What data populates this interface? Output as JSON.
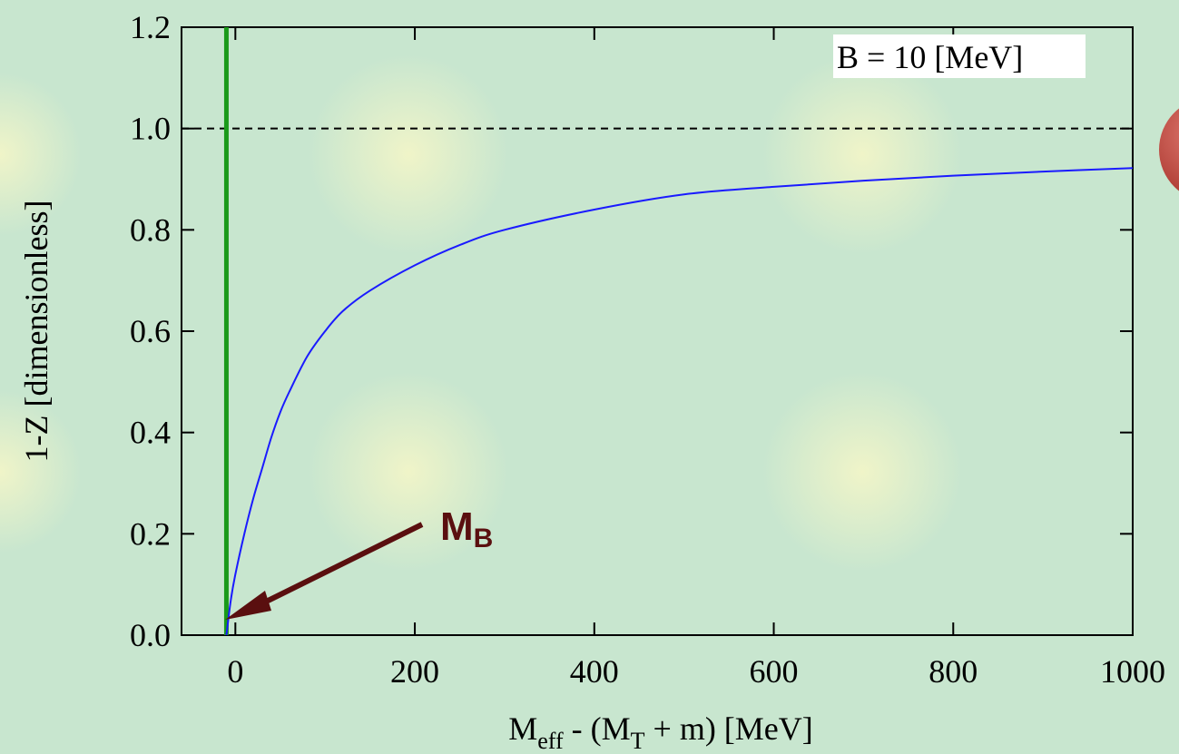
{
  "chart_data": {
    "type": "line",
    "xlabel": {
      "base": "M",
      "base_sub": "eff",
      "middle": " - (M",
      "middle_sub": "T",
      "tail": " + m) [MeV]"
    },
    "ylabel": "1-Z [dimensionless]",
    "xlim": [
      -60,
      1000
    ],
    "ylim": [
      0.0,
      1.2
    ],
    "xticks": [
      0,
      200,
      400,
      600,
      800,
      1000
    ],
    "yticks": [
      0.0,
      0.2,
      0.4,
      0.6,
      0.8,
      1.0,
      1.2
    ],
    "xtick_labels": [
      "0",
      "200",
      "400",
      "600",
      "800",
      "1000"
    ],
    "ytick_labels": [
      "0.0",
      "0.2",
      "0.4",
      "0.6",
      "0.8",
      "1.0",
      "1.2"
    ],
    "legend_label": "B = 10 [MeV]",
    "legend_position": "top-right",
    "reference_line": {
      "y": 1.0,
      "style": "dashed"
    },
    "vertical_line": {
      "x": -10,
      "color": "#1a9a1a"
    },
    "series": [
      {
        "color": "#1a1aff",
        "x": [
          -10,
          -5,
          0,
          10,
          20,
          30,
          40,
          50,
          60,
          80,
          100,
          120,
          150,
          200,
          250,
          300,
          400,
          500,
          600,
          700,
          800,
          900,
          1000
        ],
        "y": [
          0.0,
          0.07,
          0.12,
          0.2,
          0.27,
          0.33,
          0.39,
          0.44,
          0.48,
          0.55,
          0.6,
          0.64,
          0.68,
          0.73,
          0.77,
          0.8,
          0.84,
          0.87,
          0.885,
          0.897,
          0.907,
          0.915,
          0.922
        ]
      }
    ],
    "annotation": {
      "base": "M",
      "sub": "B",
      "points_to": {
        "x": -10,
        "y": 0.0
      },
      "color": "#5a0f0f"
    }
  },
  "background": {
    "base_color": "#c8e6cf",
    "glow_color": "#f2f5c8"
  }
}
